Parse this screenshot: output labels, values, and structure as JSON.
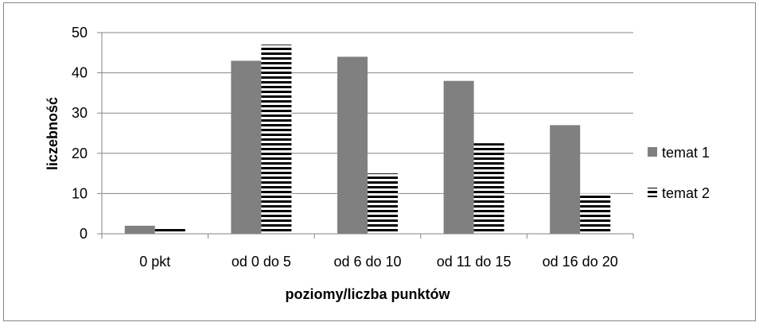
{
  "chart_data": {
    "type": "bar",
    "title": "",
    "xlabel": "poziomy/liczba punktów",
    "ylabel": "liczebność",
    "ylim": [
      0,
      50
    ],
    "yticks": [
      0,
      10,
      20,
      30,
      40,
      50
    ],
    "grid": true,
    "legend_position": "right",
    "categories": [
      "0 pkt",
      "od 0 do 5",
      "od 6 do 10",
      "od 11 do 15",
      "od 16 do 20"
    ],
    "series": [
      {
        "name": "temat 1",
        "values": [
          2,
          43,
          44,
          38,
          27
        ],
        "pattern": "solid",
        "color": "#808080"
      },
      {
        "name": "temat 2",
        "values": [
          1.5,
          47,
          15,
          22.5,
          10
        ],
        "pattern": "horizontal-stripes",
        "color": "#000000"
      }
    ]
  }
}
